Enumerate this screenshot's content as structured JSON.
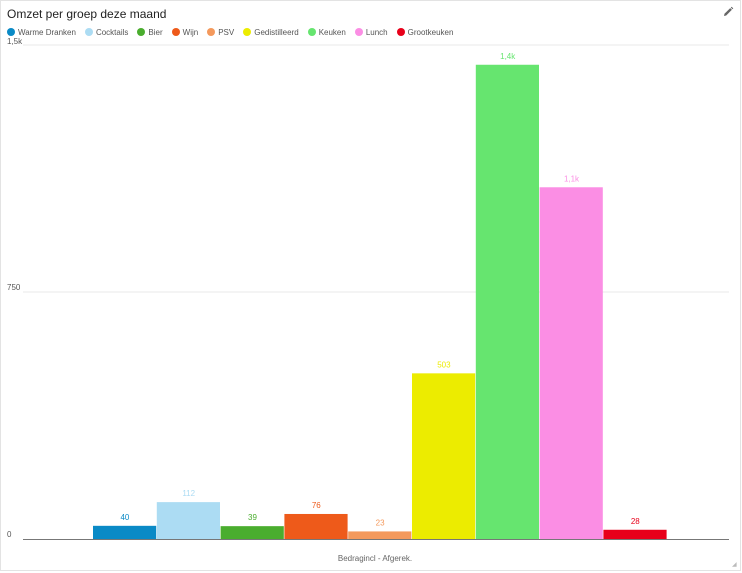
{
  "widget": {
    "title": "Omzet per groep deze maand",
    "edit_icon": "pencil-icon"
  },
  "chart_data": {
    "type": "bar",
    "categories": [
      "Bedragincl - Afgerek."
    ],
    "series": [
      {
        "name": "Warme Dranken",
        "values": [
          40
        ],
        "color": "#0a8ac6",
        "label": "40"
      },
      {
        "name": "Cocktails",
        "values": [
          112
        ],
        "color": "#acdcf3",
        "label": "112"
      },
      {
        "name": "Bier",
        "values": [
          39
        ],
        "color": "#4aad2e",
        "label": "39"
      },
      {
        "name": "Wijn",
        "values": [
          76
        ],
        "color": "#ee5a1a",
        "label": "76"
      },
      {
        "name": "PSV",
        "values": [
          23
        ],
        "color": "#f4995c",
        "label": "23"
      },
      {
        "name": "Gedistilleerd",
        "values": [
          503
        ],
        "color": "#ecec00",
        "label": "503"
      },
      {
        "name": "Keuken",
        "values": [
          1440
        ],
        "color": "#66e56f",
        "label": "1,4k"
      },
      {
        "name": "Lunch",
        "values": [
          1068
        ],
        "color": "#fb8ee4",
        "label": "1,1k"
      },
      {
        "name": "Grootkeuken",
        "values": [
          28
        ],
        "color": "#e8001a",
        "label": "28"
      }
    ],
    "y_ticks": [
      {
        "value": 0,
        "label": "0"
      },
      {
        "value": 750,
        "label": "750"
      },
      {
        "value": 1500,
        "label": "1,5k"
      }
    ],
    "xlabel": "Bedragincl - Afgerek.",
    "ylabel": "",
    "ylim": [
      0,
      1500
    ],
    "grid": true,
    "legend_position": "top-left"
  }
}
